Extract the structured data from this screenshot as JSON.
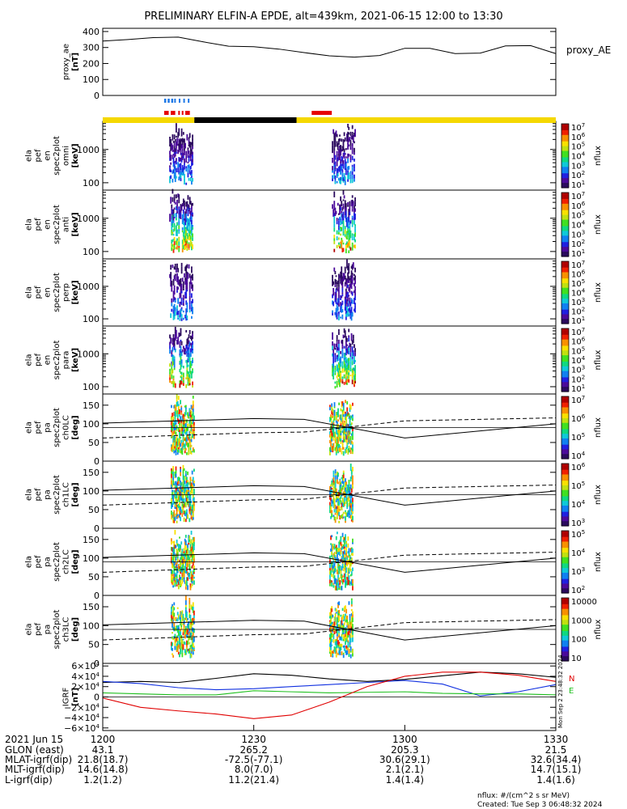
{
  "title": "PRELIMINARY ELFIN-A EPDE, alt=439km, 2021-06-15 12:00 to 13:30",
  "footer": {
    "nflux_units": "nflux: #/(cm^2 s sr MeV)",
    "created": "Created: Tue Sep  3 06:48:32 2024",
    "side_stamp": "Mon Sep  2 23:48:32 2024"
  },
  "colors": {
    "zone_yellow": "#f5d800",
    "zone_black": "#000000",
    "marker_blue": "#1e78e6",
    "marker_red": "#e60000",
    "igrf_black": "#000000",
    "igrf_blue": "#1030e0",
    "igrf_green": "#20c020",
    "igrf_red": "#e00000",
    "colormap": [
      "#2b0a5e",
      "#4b0a9b",
      "#2020e0",
      "#1080f0",
      "#10c8d8",
      "#10d880",
      "#40e020",
      "#c0e010",
      "#f8e000",
      "#f89000",
      "#f02000",
      "#b00000"
    ]
  },
  "chart_data": [
    {
      "type": "line",
      "name": "proxy_ae",
      "ylabel": "proxy_ae [nT]",
      "legend": "proxy_AE",
      "ylim": [
        0,
        420
      ],
      "yticks": [
        "400",
        "300",
        "200",
        "100",
        "0"
      ],
      "x_minutes": [
        0,
        5,
        10,
        15,
        20,
        25,
        30,
        35,
        40,
        45,
        50,
        55,
        60,
        65,
        70,
        75,
        80,
        85,
        90
      ],
      "values": [
        340,
        350,
        362,
        365,
        335,
        308,
        305,
        290,
        268,
        248,
        240,
        250,
        295,
        295,
        262,
        265,
        310,
        312,
        262
      ]
    },
    {
      "type": "heatmap",
      "name": "ela_pef_en_spec2plot_omni",
      "ylabel": "ela pef en spec2plot omni [keV]",
      "ylim": [
        60,
        7000
      ],
      "ylog": true,
      "yticks": [
        "1000",
        "100"
      ],
      "zlabel": "nflux",
      "zticks": [
        "10^7",
        "10^6",
        "10^5",
        "10^4",
        "10^3",
        "10^2",
        "10^1"
      ]
    },
    {
      "type": "heatmap",
      "name": "ela_pef_en_spec2plot_anti",
      "ylabel": "ela pef en spec2plot anti [keV]",
      "ylim": [
        60,
        7000
      ],
      "ylog": true,
      "yticks": [
        "1000",
        "100"
      ],
      "zlabel": "nflux",
      "zticks": [
        "10^7",
        "10^6",
        "10^5",
        "10^4",
        "10^3",
        "10^2",
        "10^1"
      ]
    },
    {
      "type": "heatmap",
      "name": "ela_pef_en_spec2plot_perp",
      "ylabel": "ela pef en spec2plot perp [keV]",
      "ylim": [
        60,
        7000
      ],
      "ylog": true,
      "yticks": [
        "1000",
        "100"
      ],
      "zlabel": "nflux",
      "zticks": [
        "10^7",
        "10^6",
        "10^5",
        "10^4",
        "10^3",
        "10^2",
        "10^1"
      ]
    },
    {
      "type": "heatmap",
      "name": "ela_pef_en_spec2plot_para",
      "ylabel": "ela pef en spec2plot para [keV]",
      "ylim": [
        60,
        7000
      ],
      "ylog": true,
      "yticks": [
        "1000",
        "100"
      ],
      "zlabel": "nflux",
      "zticks": [
        "10^7",
        "10^6",
        "10^5",
        "10^4",
        "10^3",
        "10^2",
        "10^1"
      ]
    },
    {
      "type": "heatmap",
      "name": "ela_pef_pa_spec2plot_ch0LC",
      "ylabel": "ela pef pa spec2plot ch0LC [deg]",
      "ylim": [
        0,
        180
      ],
      "yticks": [
        "150",
        "100",
        "50",
        "0"
      ],
      "zlabel": "nflux",
      "zticks": [
        "10^7",
        "10^6",
        "10^5",
        "10^4"
      ],
      "lc_solid_x": [
        0,
        30,
        40,
        60,
        90
      ],
      "lc_solid_y": [
        102,
        114,
        112,
        62,
        100
      ],
      "lc_dashed_x": [
        0,
        30,
        40,
        60,
        90
      ],
      "lc_dashed_y": [
        62,
        76,
        78,
        108,
        116
      ]
    },
    {
      "type": "heatmap",
      "name": "ela_pef_pa_spec2plot_ch1LC",
      "ylabel": "ela pef pa spec2plot ch1LC [deg]",
      "ylim": [
        0,
        180
      ],
      "yticks": [
        "150",
        "100",
        "50",
        "0"
      ],
      "zlabel": "nflux",
      "zticks": [
        "10^6",
        "10^5",
        "10^4",
        "10^3"
      ],
      "lc_solid_x": [
        0,
        30,
        40,
        60,
        90
      ],
      "lc_solid_y": [
        102,
        114,
        112,
        62,
        100
      ],
      "lc_dashed_x": [
        0,
        30,
        40,
        60,
        90
      ],
      "lc_dashed_y": [
        62,
        76,
        78,
        108,
        116
      ]
    },
    {
      "type": "heatmap",
      "name": "ela_pef_pa_spec2plot_ch2LC",
      "ylabel": "ela pef pa spec2plot ch2LC [deg]",
      "ylim": [
        0,
        180
      ],
      "yticks": [
        "150",
        "100",
        "50",
        "0"
      ],
      "zlabel": "nflux",
      "zticks": [
        "10^5",
        "10^4",
        "10^3",
        "10^2"
      ],
      "lc_solid_x": [
        0,
        30,
        40,
        60,
        90
      ],
      "lc_solid_y": [
        102,
        114,
        112,
        62,
        100
      ],
      "lc_dashed_x": [
        0,
        30,
        40,
        60,
        90
      ],
      "lc_dashed_y": [
        62,
        76,
        78,
        108,
        116
      ]
    },
    {
      "type": "heatmap",
      "name": "ela_pef_pa_spec2plot_ch3LC",
      "ylabel": "ela pef pa spec2plot ch3LC [deg]",
      "ylim": [
        0,
        180
      ],
      "yticks": [
        "150",
        "100",
        "50",
        "0"
      ],
      "zlabel": "nflux",
      "zticks": [
        "10000",
        "1000",
        "100",
        "10"
      ],
      "lc_solid_x": [
        0,
        30,
        40,
        60,
        90
      ],
      "lc_solid_y": [
        102,
        114,
        112,
        62,
        100
      ],
      "lc_dashed_x": [
        0,
        30,
        40,
        60,
        90
      ],
      "lc_dashed_y": [
        62,
        76,
        78,
        108,
        116
      ]
    },
    {
      "type": "line",
      "name": "igrf",
      "ylabel": "IGRF [nT]",
      "ylim": [
        -65000,
        65000
      ],
      "yticks": [
        "6×10^4",
        "4×10^4",
        "2×10^4",
        "0",
        "−2×10^4",
        "−4×10^4",
        "−6×10^4"
      ],
      "legend": [
        "N",
        "E"
      ],
      "x_minutes": [
        0,
        7.5,
        15,
        22.5,
        30,
        37.5,
        45,
        52.5,
        60,
        67.5,
        75,
        82.5,
        90
      ],
      "series": [
        {
          "color_key": "igrf_black",
          "values": [
            28000,
            30000,
            28000,
            36000,
            45000,
            42000,
            35000,
            30000,
            34000,
            41000,
            48000,
            45000,
            38000
          ]
        },
        {
          "color_key": "igrf_blue",
          "values": [
            30000,
            26000,
            18000,
            14000,
            16000,
            20000,
            24000,
            28000,
            32000,
            25000,
            2000,
            10000,
            24000
          ]
        },
        {
          "color_key": "igrf_green",
          "values": [
            8000,
            6000,
            4000,
            4000,
            12000,
            10000,
            8000,
            9000,
            10000,
            7000,
            6000,
            6000,
            4000
          ]
        },
        {
          "color_key": "igrf_red",
          "values": [
            -2000,
            -20000,
            -27000,
            -33000,
            -42000,
            -35000,
            -10000,
            20000,
            40000,
            48000,
            48000,
            42000,
            30000
          ]
        }
      ]
    }
  ],
  "x_axis": {
    "row_labels": [
      "2021 Jun 15",
      "GLON (east)",
      "MLAT-igrf(dip)",
      "MLT-igrf(dip)",
      "L-igrf(dip)"
    ],
    "ticks": [
      {
        "minute": 0,
        "values": [
          "1200",
          "43.1",
          "21.8(18.7)",
          "14.6(14.8)",
          "1.2(1.2)"
        ]
      },
      {
        "minute": 30,
        "values": [
          "1230",
          "265.2",
          "-72.5(-77.1)",
          "8.0(7.0)",
          "11.2(21.4)"
        ]
      },
      {
        "minute": 60,
        "values": [
          "1300",
          "205.3",
          "30.6(29.1)",
          "2.1(2.1)",
          "1.4(1.4)"
        ]
      },
      {
        "minute": 90,
        "values": [
          "1330",
          "21.5",
          "32.6(34.4)",
          "14.7(15.1)",
          "1.4(1.6)"
        ]
      }
    ]
  },
  "zone_bar": {
    "segments": [
      {
        "start": 0,
        "end": 18.2,
        "color_key": "zone_yellow"
      },
      {
        "start": 18.2,
        "end": 38.5,
        "color_key": "zone_black"
      },
      {
        "start": 38.5,
        "end": 90,
        "color_key": "zone_yellow"
      }
    ]
  },
  "markers": {
    "blue": [
      [
        12.2,
        12.6
      ],
      [
        12.9,
        13.3
      ],
      [
        13.6,
        14.0
      ],
      [
        14.2,
        14.5
      ],
      [
        15.1,
        15.4
      ],
      [
        16.0,
        16.3
      ],
      [
        16.9,
        17.2
      ]
    ],
    "red": [
      [
        12.2,
        13.1
      ],
      [
        13.5,
        14.4
      ],
      [
        15.0,
        15.3
      ],
      [
        15.7,
        16.0
      ],
      [
        16.4,
        17.3
      ],
      [
        41.5,
        45.5
      ]
    ]
  }
}
